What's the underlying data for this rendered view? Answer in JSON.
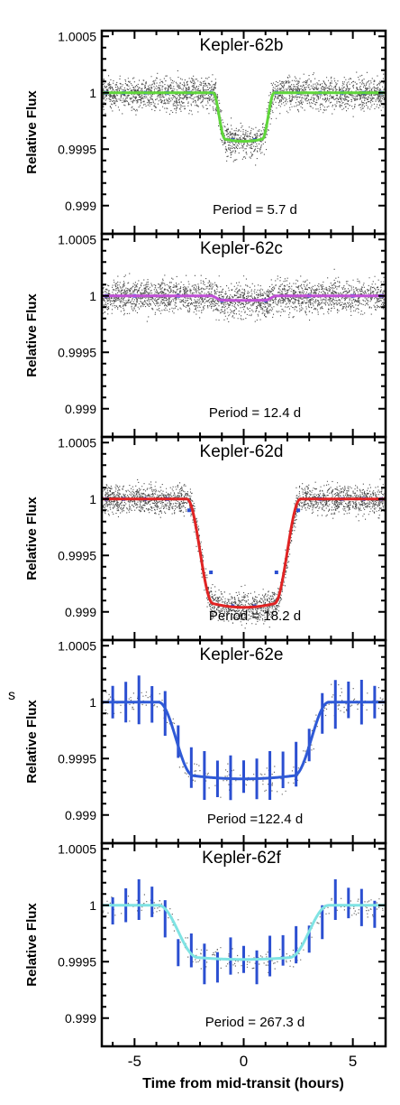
{
  "stray_text": "s",
  "chart_data": {
    "type": "scatter",
    "xlabel": "Time from mid-transit (hours)",
    "ylabel": "Relative Flux",
    "xlim": [
      -6.5,
      6.5
    ],
    "xticks": [
      -5,
      0,
      5
    ],
    "ylim": [
      0.99875,
      1.00055
    ],
    "yticks": [
      1.0005,
      1,
      0.9995,
      0.999
    ],
    "ytick_labels": [
      "1.0005",
      "1",
      "0.9995",
      "0.999"
    ],
    "panels": [
      {
        "name": "Kepler-62b",
        "period_label": "Period = 5.7 d",
        "model_color": "#5fd63a",
        "depth": 0.00043,
        "half_duration": 1.4,
        "ingress": 0.55,
        "noise": 0.00018,
        "points_style": "dense",
        "binned": [
          [
            -6.3,
            1.0
          ],
          [
            -5.5,
            1.0
          ],
          [
            -4.5,
            1.0
          ],
          [
            -3.5,
            1.0
          ],
          [
            -2.5,
            1.0
          ],
          [
            -1.5,
            1.0
          ],
          [
            -0.5,
            0.99958
          ],
          [
            0.5,
            0.99958
          ],
          [
            1.5,
            1.0
          ],
          [
            2.5,
            1.0
          ],
          [
            3.5,
            1.0
          ],
          [
            4.5,
            1.0
          ],
          [
            5.5,
            1.0
          ],
          [
            6.3,
            1.0
          ]
        ]
      },
      {
        "name": "Kepler-62c",
        "period_label": "Period = 12.4 d",
        "model_color": "#c04fd6",
        "depth": 4e-05,
        "half_duration": 1.5,
        "ingress": 0.5,
        "noise": 0.00018,
        "points_style": "dense",
        "binned": [
          [
            -6.3,
            1.0
          ],
          [
            -5,
            1.0
          ],
          [
            -3,
            1.0
          ],
          [
            -1,
            0.99996
          ],
          [
            1,
            0.99996
          ],
          [
            3,
            1.0
          ],
          [
            5,
            1.0
          ],
          [
            6.3,
            1.0
          ]
        ]
      },
      {
        "name": "Kepler-62d",
        "period_label": "Period = 18.2 d",
        "model_color": "#e02323",
        "depth": 0.00096,
        "half_duration": 2.6,
        "ingress": 1.2,
        "noise": 0.00016,
        "points_style": "dense",
        "binned": [
          [
            -6.3,
            1.0
          ],
          [
            -5.5,
            1.0
          ],
          [
            -4.5,
            1.0
          ],
          [
            -3.5,
            1.0
          ],
          [
            -2.5,
            0.9999
          ],
          [
            -1.5,
            0.99935
          ],
          [
            -0.5,
            0.99905
          ],
          [
            0.5,
            0.99905
          ],
          [
            1.5,
            0.99935
          ],
          [
            2.5,
            0.9999
          ],
          [
            3.5,
            1.0
          ],
          [
            4.5,
            1.0
          ],
          [
            5.5,
            1.0
          ],
          [
            6.3,
            1.0
          ]
        ]
      },
      {
        "name": "Kepler-62e",
        "period_label": "Period =122.4 d",
        "model_color": "#2f5ad6",
        "depth": 0.00068,
        "half_duration": 3.9,
        "ingress": 1.6,
        "noise": 0.00012,
        "points_style": "sparse",
        "binned": [
          [
            -6.0,
            1.0
          ],
          [
            -5.4,
            1.0
          ],
          [
            -4.8,
            1.00002
          ],
          [
            -4.2,
            0.99998
          ],
          [
            -3.6,
            0.9999
          ],
          [
            -3.0,
            0.99965
          ],
          [
            -2.4,
            0.99942
          ],
          [
            -1.8,
            0.99935
          ],
          [
            -1.2,
            0.99932
          ],
          [
            -0.6,
            0.99933
          ],
          [
            0.0,
            0.99934
          ],
          [
            0.6,
            0.99932
          ],
          [
            1.2,
            0.99935
          ],
          [
            1.8,
            0.9994
          ],
          [
            2.4,
            0.99945
          ],
          [
            3.0,
            0.99962
          ],
          [
            3.6,
            0.9999
          ],
          [
            4.2,
            0.99998
          ],
          [
            4.8,
            1.00002
          ],
          [
            5.4,
            1.0
          ],
          [
            6.0,
            1.0
          ]
        ]
      },
      {
        "name": "Kepler-62f",
        "period_label": "Period = 267.3 d",
        "model_color": "#7fe3e3",
        "depth": 0.00048,
        "half_duration": 3.9,
        "ingress": 1.8,
        "noise": 0.0001,
        "points_style": "sparse",
        "binned": [
          [
            -6.0,
            0.99995
          ],
          [
            -5.4,
            1.0
          ],
          [
            -4.8,
            1.00005
          ],
          [
            -4.2,
            1.00003
          ],
          [
            -3.6,
            0.99988
          ],
          [
            -3.0,
            0.99958
          ],
          [
            -2.4,
            0.9996
          ],
          [
            -1.8,
            0.99948
          ],
          [
            -1.2,
            0.99945
          ],
          [
            -0.6,
            0.99955
          ],
          [
            0.0,
            0.99952
          ],
          [
            0.6,
            0.99945
          ],
          [
            1.2,
            0.99955
          ],
          [
            1.8,
            0.9996
          ],
          [
            2.4,
            0.99965
          ],
          [
            3.0,
            0.9997
          ],
          [
            3.6,
            0.99985
          ],
          [
            4.2,
            1.00005
          ],
          [
            4.8,
            1.00002
          ],
          [
            5.4,
            0.99998
          ],
          [
            6.0,
            0.99992
          ]
        ]
      }
    ]
  }
}
